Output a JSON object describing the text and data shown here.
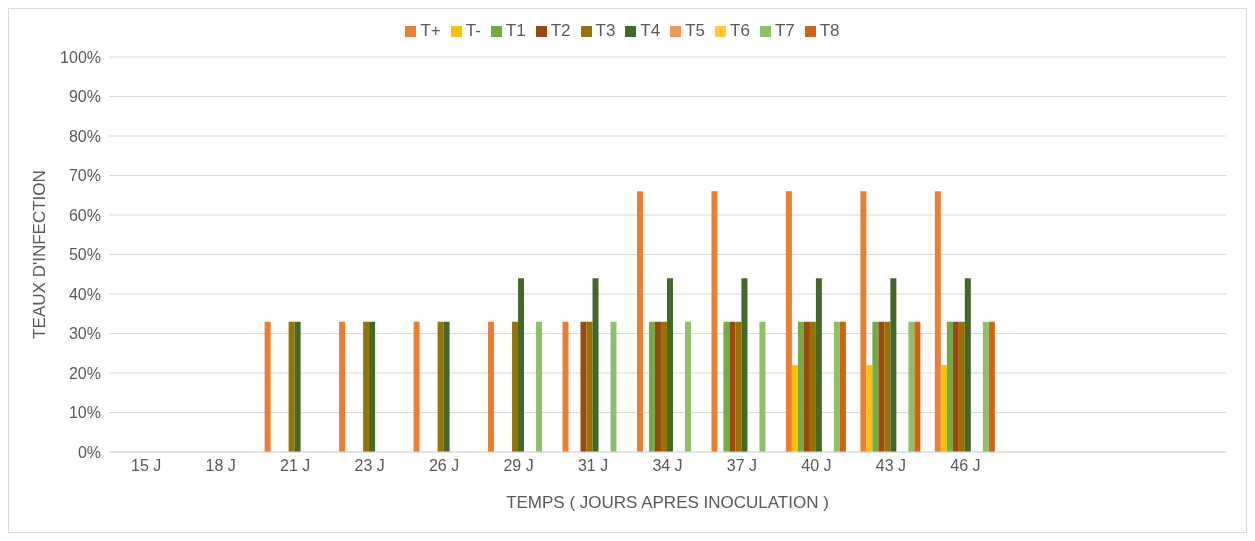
{
  "chart_data": {
    "type": "bar",
    "xlabel": "TEMPS ( JOURS APRES INOCULATION )",
    "ylabel": "TEAUX D'INFECTION",
    "categories": [
      "15 J",
      "18 J",
      "21 J",
      "23 J",
      "26 J",
      "29 J",
      "31 J",
      "34 J",
      "37 J",
      "40 J",
      "43 J",
      "46 J",
      null,
      null,
      null
    ],
    "series": [
      {
        "name": "T+",
        "color": "#ed7d31",
        "values": [
          0,
          0,
          33,
          33,
          33,
          33,
          33,
          66,
          66,
          66,
          66,
          66,
          null,
          null,
          null
        ]
      },
      {
        "name": "T-",
        "color": "#ffc000",
        "values": [
          0,
          0,
          0,
          0,
          0,
          0,
          0,
          0,
          0,
          22,
          22,
          22,
          null,
          null,
          null
        ]
      },
      {
        "name": "T1",
        "color": "#70ad47",
        "values": [
          0,
          0,
          0,
          0,
          0,
          0,
          0,
          33,
          33,
          33,
          33,
          33,
          null,
          null,
          null
        ]
      },
      {
        "name": "T2",
        "color": "#9e480e",
        "values": [
          0,
          0,
          0,
          0,
          0,
          0,
          33,
          33,
          33,
          33,
          33,
          33,
          null,
          null,
          null
        ]
      },
      {
        "name": "T3",
        "color": "#997300",
        "values": [
          0,
          0,
          33,
          33,
          33,
          33,
          33,
          33,
          33,
          33,
          33,
          33,
          null,
          null,
          null
        ]
      },
      {
        "name": "T4",
        "color": "#43682b",
        "values": [
          0,
          0,
          33,
          33,
          33,
          44,
          44,
          44,
          44,
          44,
          44,
          44,
          null,
          null,
          null
        ]
      },
      {
        "name": "T5",
        "color": "#f1975a",
        "values": [
          0,
          0,
          0,
          0,
          0,
          0,
          0,
          0,
          0,
          0,
          0,
          0,
          null,
          null,
          null
        ]
      },
      {
        "name": "T6",
        "color": "#ffcd33",
        "values": [
          0,
          0,
          0,
          0,
          0,
          0,
          0,
          0,
          0,
          0,
          0,
          0,
          null,
          null,
          null
        ]
      },
      {
        "name": "T7",
        "color": "#8cc168",
        "values": [
          0,
          0,
          0,
          0,
          0,
          33,
          33,
          33,
          33,
          33,
          33,
          33,
          null,
          null,
          null
        ]
      },
      {
        "name": "T8",
        "color": "#d46214",
        "values": [
          0,
          0,
          0,
          0,
          0,
          0,
          0,
          0,
          0,
          33,
          33,
          33,
          null,
          null,
          null
        ]
      }
    ],
    "ylim": [
      0,
      100
    ],
    "yticks": [
      {
        "value": 0,
        "label": "0%"
      },
      {
        "value": 10,
        "label": "10%"
      },
      {
        "value": 20,
        "label": "20%"
      },
      {
        "value": 30,
        "label": "30%"
      },
      {
        "value": 40,
        "label": "40%"
      },
      {
        "value": 50,
        "label": "50%"
      },
      {
        "value": 60,
        "label": "60%"
      },
      {
        "value": 70,
        "label": "70%"
      },
      {
        "value": 80,
        "label": "80%"
      },
      {
        "value": 90,
        "label": "90%"
      },
      {
        "value": 100,
        "label": "100%"
      }
    ],
    "grid": "y",
    "legend": "top"
  }
}
